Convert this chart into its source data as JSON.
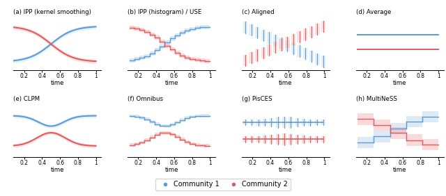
{
  "titles": [
    "(a) IPP (kernel smoothing)",
    "(b) IPP (histogram) / USE",
    "(c) Aligned",
    "(d) Average",
    "(e) CLPM",
    "(f) Omnibus",
    "(g) PisCES",
    "(h) MultiNeSS"
  ],
  "blue_color": "#5b9bd5",
  "red_color": "#e05c5c",
  "blue_fill": "#aacce8",
  "red_fill": "#f0a0a0",
  "xlabel": "time",
  "xticks": [
    0.2,
    0.4,
    0.6,
    0.8,
    1.0
  ],
  "xticklabels": [
    "0.2",
    "0.4",
    "0.6",
    "0.8",
    "1"
  ],
  "n_bins": 16,
  "legend_labels": [
    "Community 1",
    "Community 2"
  ]
}
